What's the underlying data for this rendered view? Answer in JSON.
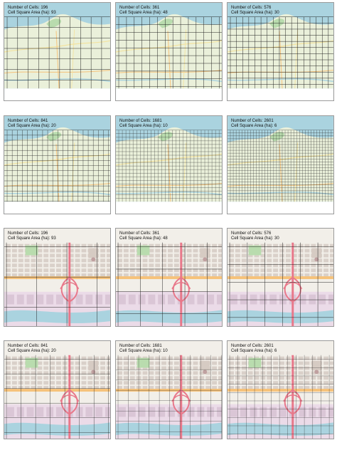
{
  "labels": {
    "cells_prefix": "Number of Cells: ",
    "area_prefix": "Cell Square Area (ha): "
  },
  "colors": {
    "water": "#aad3df",
    "land": "#eaf0da",
    "park": "#b9dcae",
    "road_major": "#f6c27a",
    "interchange": "#e8788a",
    "street_land": "#f2efe9",
    "block": "#d9d0c9",
    "industrial": "#ebdbe8",
    "river": "#aad3df",
    "grid_line": "#222222",
    "panel_border": "#9a9a9a"
  },
  "rows": [
    {
      "zoom": "regional",
      "panels": [
        {
          "cells": 196,
          "area": 93
        },
        {
          "cells": 361,
          "area": 48
        },
        {
          "cells": 576,
          "area": 30
        }
      ]
    },
    {
      "zoom": "regional",
      "panels": [
        {
          "cells": 841,
          "area": 20
        },
        {
          "cells": 1681,
          "area": 10
        },
        {
          "cells": 2601,
          "area": 6
        }
      ]
    },
    {
      "zoom": "detail",
      "panels": [
        {
          "cells": 196,
          "area": 93
        },
        {
          "cells": 361,
          "area": 48
        },
        {
          "cells": 576,
          "area": 30
        }
      ]
    },
    {
      "zoom": "detail",
      "panels": [
        {
          "cells": 841,
          "area": 20
        },
        {
          "cells": 1681,
          "area": 10
        },
        {
          "cells": 2601,
          "area": 6
        }
      ]
    }
  ]
}
